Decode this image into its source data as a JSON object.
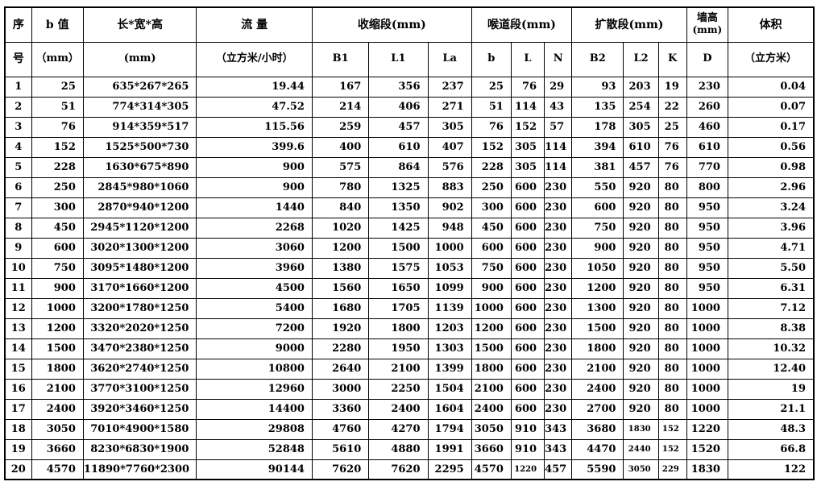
{
  "colors": {
    "background": "#ffffff",
    "border": "#000000",
    "text": "#000000"
  },
  "table": {
    "header_row1": {
      "serial": "序",
      "b_value": "b 值",
      "dimensions": "长*宽*高",
      "flow": "流 量",
      "contraction_group": "收缩段(mm)",
      "throat_group": "喉道段(mm)",
      "diffusion_group": "扩散段(mm)",
      "wall_height_line1": "墙高",
      "wall_height_line2": "(mm)",
      "volume": "体积"
    },
    "header_row2": {
      "serial": "号",
      "b_value_unit": "（mm）",
      "dimensions_unit": "(mm)",
      "flow_unit": "（立方米/小时）",
      "subcols": [
        "B1",
        "L1",
        "La",
        "b",
        "L",
        "N",
        "B2",
        "L2",
        "K",
        "D"
      ],
      "volume_unit": "（立方米）"
    },
    "rows": [
      [
        "1",
        "25",
        "635*267*265",
        "19.44",
        "167",
        "356",
        "237",
        "25",
        "76",
        "29",
        "93",
        "203",
        "19",
        "230",
        "0.04"
      ],
      [
        "2",
        "51",
        "774*314*305",
        "47.52",
        "214",
        "406",
        "271",
        "51",
        "114",
        "43",
        "135",
        "254",
        "22",
        "260",
        "0.07"
      ],
      [
        "3",
        "76",
        "914*359*517",
        "115.56",
        "259",
        "457",
        "305",
        "76",
        "152",
        "57",
        "178",
        "305",
        "25",
        "460",
        "0.17"
      ],
      [
        "4",
        "152",
        "1525*500*730",
        "399.6",
        "400",
        "610",
        "407",
        "152",
        "305",
        "114",
        "394",
        "610",
        "76",
        "610",
        "0.56"
      ],
      [
        "5",
        "228",
        "1630*675*890",
        "900",
        "575",
        "864",
        "576",
        "228",
        "305",
        "114",
        "381",
        "457",
        "76",
        "770",
        "0.98"
      ],
      [
        "6",
        "250",
        "2845*980*1060",
        "900",
        "780",
        "1325",
        "883",
        "250",
        "600",
        "230",
        "550",
        "920",
        "80",
        "800",
        "2.96"
      ],
      [
        "7",
        "300",
        "2870*940*1200",
        "1440",
        "840",
        "1350",
        "902",
        "300",
        "600",
        "230",
        "600",
        "920",
        "80",
        "950",
        "3.24"
      ],
      [
        "8",
        "450",
        "2945*1120*1200",
        "2268",
        "1020",
        "1425",
        "948",
        "450",
        "600",
        "230",
        "750",
        "920",
        "80",
        "950",
        "3.96"
      ],
      [
        "9",
        "600",
        "3020*1300*1200",
        "3060",
        "1200",
        "1500",
        "1000",
        "600",
        "600",
        "230",
        "900",
        "920",
        "80",
        "950",
        "4.71"
      ],
      [
        "10",
        "750",
        "3095*1480*1200",
        "3960",
        "1380",
        "1575",
        "1053",
        "750",
        "600",
        "230",
        "1050",
        "920",
        "80",
        "950",
        "5.50"
      ],
      [
        "11",
        "900",
        "3170*1660*1200",
        "4500",
        "1560",
        "1650",
        "1099",
        "900",
        "600",
        "230",
        "1200",
        "920",
        "80",
        "950",
        "6.31"
      ],
      [
        "12",
        "1000",
        "3200*1780*1250",
        "5400",
        "1680",
        "1705",
        "1139",
        "1000",
        "600",
        "230",
        "1300",
        "920",
        "80",
        "1000",
        "7.12"
      ],
      [
        "13",
        "1200",
        "3320*2020*1250",
        "7200",
        "1920",
        "1800",
        "1203",
        "1200",
        "600",
        "230",
        "1500",
        "920",
        "80",
        "1000",
        "8.38"
      ],
      [
        "14",
        "1500",
        "3470*2380*1250",
        "9000",
        "2280",
        "1950",
        "1303",
        "1500",
        "600",
        "230",
        "1800",
        "920",
        "80",
        "1000",
        "10.32"
      ],
      [
        "15",
        "1800",
        "3620*2740*1250",
        "10800",
        "2640",
        "2100",
        "1399",
        "1800",
        "600",
        "230",
        "2100",
        "920",
        "80",
        "1000",
        "12.40"
      ],
      [
        "16",
        "2100",
        "3770*3100*1250",
        "12960",
        "3000",
        "2250",
        "1504",
        "2100",
        "600",
        "230",
        "2400",
        "920",
        "80",
        "1000",
        "19"
      ],
      [
        "17",
        "2400",
        "3920*3460*1250",
        "14400",
        "3360",
        "2400",
        "1604",
        "2400",
        "600",
        "230",
        "2700",
        "920",
        "80",
        "1000",
        "21.1"
      ],
      [
        "18",
        "3050",
        "7010*4900*1580",
        "29808",
        "4760",
        "4270",
        "1794",
        "3050",
        "910",
        "343",
        "3680",
        "1830",
        "152",
        "1220",
        "48.3"
      ],
      [
        "19",
        "3660",
        "8230*6830*1900",
        "52848",
        "5610",
        "4880",
        "1991",
        "3660",
        "910",
        "343",
        "4470",
        "2440",
        "152",
        "1520",
        "66.8"
      ],
      [
        "20",
        "4570",
        "11890*7760*2300",
        "90144",
        "7620",
        "7620",
        "2295",
        "4570",
        "1220",
        "457",
        "5590",
        "3050",
        "229",
        "1830",
        "122"
      ]
    ]
  }
}
